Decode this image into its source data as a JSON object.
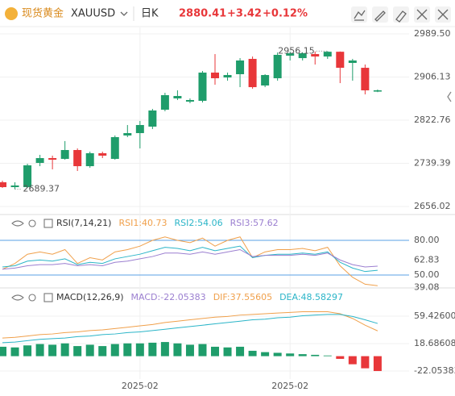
{
  "header": {
    "symbol_name": "现货黄金",
    "symbol": "XAUUSD",
    "period": "日K",
    "price": "2880.41",
    "change": "+3.42",
    "change_pct": "+0.12%"
  },
  "chart_data": [
    {
      "type": "candlestick",
      "categories": [
        null,
        null,
        null,
        null,
        null,
        null,
        null,
        null,
        null,
        null,
        null,
        "2025-02",
        null,
        null,
        null,
        null,
        null,
        null,
        null,
        null,
        null,
        null,
        null,
        "2025-02",
        null,
        null,
        null,
        null,
        null,
        null,
        null
      ],
      "open": [
        2702.8,
        2693.4,
        2693.4,
        2740.2,
        2749.5,
        2748.0,
        2765.1,
        2733.9,
        2758.9,
        2748.0,
        2793.2,
        2797.8,
        2810.3,
        2843.0,
        2864.8,
        2858.6,
        2860.2,
        2914.7,
        2905.3,
        2911.6,
        2941.2,
        2889.8,
        2903.8,
        2947.4,
        2942.7,
        2950.5,
        2945.8,
        2955.0,
        2933.4,
        2924.0,
        2878.0
      ],
      "high": [
        2705.9,
        2702.8,
        2738.6,
        2755.8,
        2754.2,
        2782.4,
        2768.2,
        2762.0,
        2762.0,
        2793.2,
        2813.4,
        2821.2,
        2844.6,
        2875.7,
        2880.4,
        2864.8,
        2917.8,
        2950.5,
        2914.7,
        2942.7,
        2945.8,
        2911.6,
        2953.6,
        2955.0,
        2954.0,
        2955.5,
        2956.15,
        2955.5,
        2941.2,
        2930.3,
        2882.0
      ],
      "low": [
        2691.9,
        2689.37,
        2691.9,
        2733.9,
        2727.7,
        2746.4,
        2724.6,
        2730.8,
        2749.5,
        2746.4,
        2790.0,
        2768.2,
        2805.6,
        2839.9,
        2861.7,
        2855.5,
        2857.0,
        2891.3,
        2899.1,
        2886.6,
        2883.5,
        2886.6,
        2899.1,
        2938.1,
        2938.1,
        2930.3,
        2941.2,
        2894.4,
        2899.1,
        2872.6,
        2877.0
      ],
      "close": [
        2693.4,
        2696.6,
        2735.5,
        2749.5,
        2746.4,
        2765.1,
        2733.9,
        2758.9,
        2754.2,
        2790.0,
        2797.8,
        2813.4,
        2841.5,
        2871.1,
        2869.5,
        2861.7,
        2914.7,
        2903.8,
        2910.0,
        2938.1,
        2886.6,
        2910.0,
        2949.0,
        2952.1,
        2952.1,
        2945.8,
        2955.0,
        2924.0,
        2938.1,
        2880.4,
        2880.41
      ],
      "up_color": "#1f9d6b",
      "down_color": "#e8373a",
      "max_label": 2956.15,
      "min_label": 2689.37,
      "ylim": [
        2642,
        3002
      ],
      "yticks": [
        {
          "value": 2989.5,
          "label": "2989.50"
        },
        2906.13,
        2822.76,
        2739.39,
        2656.02
      ],
      "grid": true
    },
    {
      "type": "line",
      "title": "RSI(7,14,21)",
      "series": [
        {
          "name": "RSI1:40.73",
          "color": "#f0a04b",
          "values": [
            55,
            60,
            68,
            70,
            68,
            72,
            60,
            65,
            63,
            70,
            72,
            75,
            80,
            83,
            80,
            78,
            82,
            75,
            80,
            83,
            65,
            70,
            72,
            72,
            73,
            71,
            74,
            58,
            48,
            42,
            40.73
          ]
        },
        {
          "name": "RSI2:54.06",
          "color": "#2bb5c8",
          "values": [
            57,
            58,
            62,
            63,
            62,
            64,
            59,
            61,
            60,
            64,
            66,
            68,
            71,
            74,
            73,
            71,
            74,
            71,
            73,
            75,
            65,
            67,
            68,
            68,
            69,
            68,
            70,
            61,
            56,
            53,
            54.06
          ]
        },
        {
          "name": "RSI3:57.62",
          "color": "#9b7fd0",
          "values": [
            55,
            56,
            58,
            59,
            59,
            60,
            58,
            59,
            58,
            61,
            62,
            64,
            66,
            69,
            69,
            68,
            70,
            68,
            70,
            72,
            66,
            67,
            67,
            67,
            68,
            67,
            69,
            63,
            59,
            57,
            57.62
          ]
        }
      ],
      "ylim": [
        38.1,
        87.7
      ],
      "yticks": [
        {
          "value": 80,
          "label": "80.00"
        },
        62.83,
        {
          "value": 50,
          "label": "50.00"
        },
        39.08
      ],
      "hlines": [
        80,
        50
      ],
      "hline_color": "#5aa0e6"
    },
    {
      "type": "macd",
      "title": "MACD(12,26,9)",
      "histogram": {
        "name": "MACD:-22.05383",
        "up_color": "#1f9d6b",
        "down_color": "#e8373a",
        "values": [
          14,
          13,
          16,
          18,
          17,
          19,
          15,
          17,
          15,
          18,
          19,
          19,
          20,
          21,
          19,
          17,
          18,
          14,
          13,
          14,
          8,
          6,
          5,
          4,
          3,
          2,
          1,
          -4,
          -12,
          -18,
          -22.05383
        ]
      },
      "series": [
        {
          "name": "DIF:37.55605",
          "color": "#f0a04b",
          "values": [
            27,
            28,
            30,
            32,
            33,
            35,
            36,
            38,
            39,
            41,
            43,
            45,
            47,
            50,
            52,
            54,
            56,
            58,
            59,
            61,
            62,
            63,
            64,
            65,
            66,
            66,
            66,
            63,
            56,
            46,
            37.55605
          ]
        },
        {
          "name": "DEA:48.58297",
          "color": "#2bb5c8",
          "values": [
            20,
            21,
            23,
            25,
            26,
            27,
            29,
            30,
            32,
            33,
            35,
            36,
            38,
            40,
            42,
            44,
            46,
            48,
            50,
            52,
            54,
            55,
            57,
            58,
            60,
            61,
            62,
            62,
            59,
            54,
            48.58297
          ]
        }
      ],
      "ylim": [
        -34,
        73.8
      ],
      "yticks": [
        {
          "value": 59.426,
          "label": "59.42600"
        },
        18.68608,
        -22.05383
      ],
      "grid": true
    }
  ]
}
